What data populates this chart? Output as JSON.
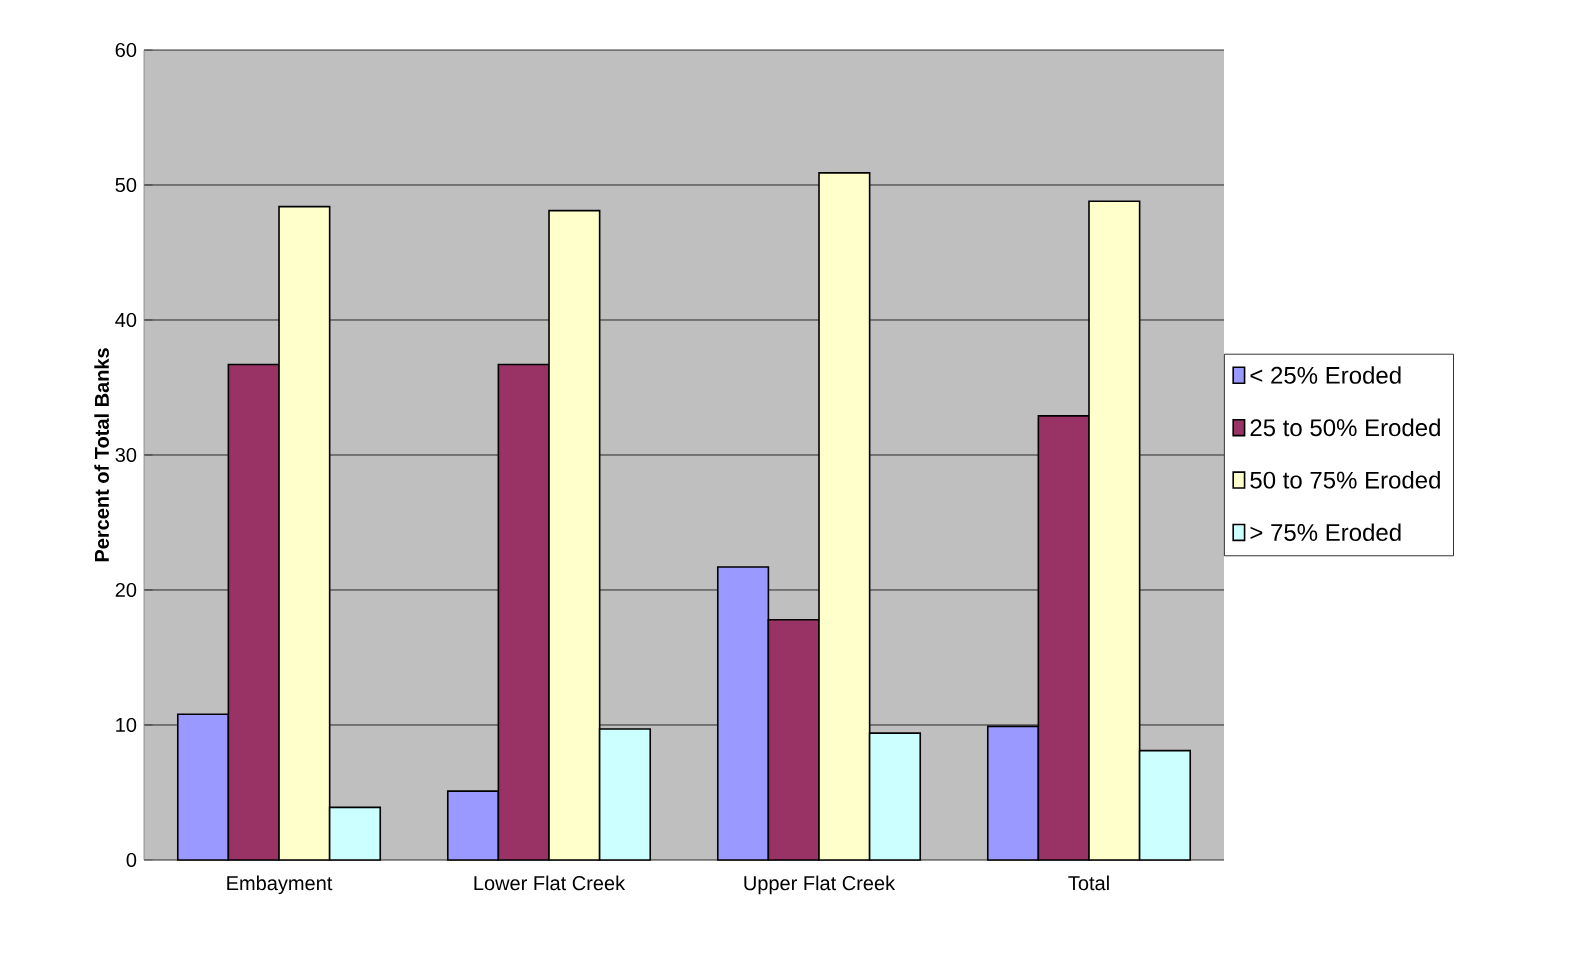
{
  "chart_data": {
    "type": "bar",
    "ylabel": "Percent of Total Banks",
    "categories": [
      "Embayment",
      "Lower Flat Creek",
      "Upper Flat Creek",
      "Total"
    ],
    "series": [
      {
        "name": "< 25% Eroded",
        "color": "#9999ff",
        "values": [
          10.8,
          5.1,
          21.7,
          9.9
        ]
      },
      {
        "name": "25 to 50% Eroded",
        "color": "#993366",
        "values": [
          36.7,
          36.7,
          17.8,
          32.9
        ]
      },
      {
        "name": "50 to 75% Eroded",
        "color": "#ffffcc",
        "values": [
          48.4,
          48.1,
          50.9,
          48.8
        ]
      },
      {
        "name": "> 75% Eroded",
        "color": "#ccffff",
        "values": [
          3.9,
          9.7,
          9.4,
          8.1
        ]
      }
    ],
    "ylim": [
      0,
      60
    ],
    "yticks": [
      0,
      10,
      20,
      30,
      40,
      50,
      60
    ],
    "grid": "y",
    "legend": "right"
  }
}
